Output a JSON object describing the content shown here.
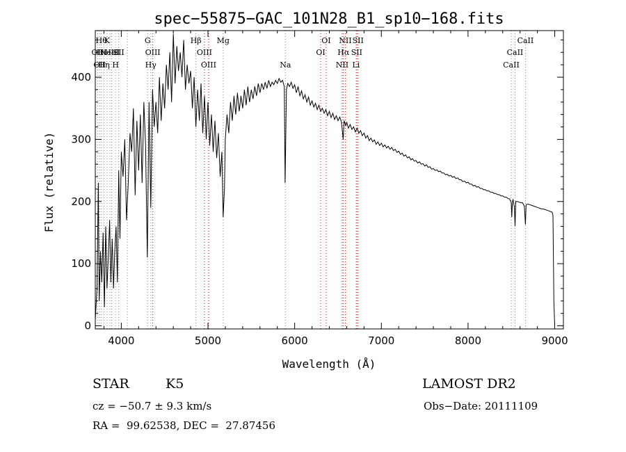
{
  "chart_data": {
    "type": "line",
    "title": "spec−55875−GAC_101N28_B1_sp10−168.fits",
    "xlabel": "Wavelength (Å)",
    "ylabel": "Flux (relative)",
    "xlim": [
      3700,
      9100
    ],
    "ylim": [
      -5,
      475
    ],
    "x_ticks": [
      4000,
      5000,
      6000,
      7000,
      8000,
      9000
    ],
    "y_ticks": [
      0,
      100,
      200,
      300,
      400
    ],
    "line_color": "#000000",
    "marker_color": "#cc0000",
    "spectrum": [
      [
        3700,
        10
      ],
      [
        3720,
        60
      ],
      [
        3735,
        230
      ],
      [
        3745,
        40
      ],
      [
        3760,
        120
      ],
      [
        3775,
        70
      ],
      [
        3790,
        150
      ],
      [
        3805,
        30
      ],
      [
        3820,
        160
      ],
      [
        3835,
        60
      ],
      [
        3850,
        110
      ],
      [
        3865,
        170
      ],
      [
        3880,
        70
      ],
      [
        3895,
        140
      ],
      [
        3910,
        60
      ],
      [
        3925,
        120
      ],
      [
        3940,
        160
      ],
      [
        3955,
        70
      ],
      [
        3970,
        250
      ],
      [
        3985,
        140
      ],
      [
        4000,
        280
      ],
      [
        4020,
        240
      ],
      [
        4040,
        300
      ],
      [
        4060,
        170
      ],
      [
        4080,
        230
      ],
      [
        4100,
        310
      ],
      [
        4120,
        280
      ],
      [
        4140,
        350
      ],
      [
        4160,
        210
      ],
      [
        4180,
        330
      ],
      [
        4200,
        250
      ],
      [
        4220,
        340
      ],
      [
        4240,
        230
      ],
      [
        4260,
        360
      ],
      [
        4280,
        290
      ],
      [
        4300,
        110
      ],
      [
        4320,
        360
      ],
      [
        4340,
        190
      ],
      [
        4360,
        380
      ],
      [
        4380,
        320
      ],
      [
        4400,
        360
      ],
      [
        4420,
        310
      ],
      [
        4440,
        400
      ],
      [
        4460,
        330
      ],
      [
        4480,
        390
      ],
      [
        4500,
        350
      ],
      [
        4520,
        420
      ],
      [
        4540,
        380
      ],
      [
        4560,
        440
      ],
      [
        4580,
        360
      ],
      [
        4600,
        470
      ],
      [
        4620,
        390
      ],
      [
        4640,
        450
      ],
      [
        4660,
        410
      ],
      [
        4680,
        440
      ],
      [
        4700,
        400
      ],
      [
        4720,
        460
      ],
      [
        4740,
        380
      ],
      [
        4760,
        420
      ],
      [
        4780,
        390
      ],
      [
        4800,
        410
      ],
      [
        4820,
        350
      ],
      [
        4840,
        400
      ],
      [
        4860,
        320
      ],
      [
        4880,
        380
      ],
      [
        4900,
        330
      ],
      [
        4920,
        390
      ],
      [
        4940,
        310
      ],
      [
        4960,
        370
      ],
      [
        4980,
        300
      ],
      [
        5000,
        360
      ],
      [
        5020,
        290
      ],
      [
        5040,
        340
      ],
      [
        5060,
        280
      ],
      [
        5080,
        330
      ],
      [
        5100,
        270
      ],
      [
        5120,
        310
      ],
      [
        5140,
        240
      ],
      [
        5160,
        280
      ],
      [
        5175,
        175
      ],
      [
        5190,
        220
      ],
      [
        5200,
        300
      ],
      [
        5220,
        340
      ],
      [
        5240,
        310
      ],
      [
        5260,
        360
      ],
      [
        5280,
        330
      ],
      [
        5300,
        370
      ],
      [
        5320,
        340
      ],
      [
        5340,
        375
      ],
      [
        5360,
        345
      ],
      [
        5380,
        370
      ],
      [
        5400,
        350
      ],
      [
        5420,
        380
      ],
      [
        5440,
        355
      ],
      [
        5460,
        385
      ],
      [
        5480,
        360
      ],
      [
        5500,
        380
      ],
      [
        5520,
        365
      ],
      [
        5540,
        385
      ],
      [
        5560,
        370
      ],
      [
        5580,
        390
      ],
      [
        5600,
        375
      ],
      [
        5620,
        390
      ],
      [
        5640,
        380
      ],
      [
        5660,
        392
      ],
      [
        5680,
        382
      ],
      [
        5700,
        395
      ],
      [
        5720,
        385
      ],
      [
        5740,
        392
      ],
      [
        5760,
        388
      ],
      [
        5780,
        395
      ],
      [
        5800,
        390
      ],
      [
        5820,
        398
      ],
      [
        5840,
        392
      ],
      [
        5860,
        395
      ],
      [
        5880,
        385
      ],
      [
        5890,
        230
      ],
      [
        5897,
        300
      ],
      [
        5905,
        380
      ],
      [
        5920,
        390
      ],
      [
        5940,
        385
      ],
      [
        5960,
        392
      ],
      [
        5980,
        382
      ],
      [
        6000,
        388
      ],
      [
        6020,
        375
      ],
      [
        6040,
        385
      ],
      [
        6060,
        370
      ],
      [
        6080,
        378
      ],
      [
        6100,
        365
      ],
      [
        6120,
        372
      ],
      [
        6140,
        360
      ],
      [
        6160,
        368
      ],
      [
        6180,
        355
      ],
      [
        6200,
        362
      ],
      [
        6220,
        352
      ],
      [
        6240,
        358
      ],
      [
        6260,
        348
      ],
      [
        6280,
        355
      ],
      [
        6300,
        345
      ],
      [
        6320,
        350
      ],
      [
        6340,
        342
      ],
      [
        6360,
        348
      ],
      [
        6380,
        338
      ],
      [
        6400,
        345
      ],
      [
        6420,
        335
      ],
      [
        6440,
        342
      ],
      [
        6460,
        332
      ],
      [
        6480,
        338
      ],
      [
        6500,
        330
      ],
      [
        6520,
        336
      ],
      [
        6540,
        328
      ],
      [
        6560,
        300
      ],
      [
        6570,
        330
      ],
      [
        6590,
        322
      ],
      [
        6600,
        328
      ],
      [
        6620,
        318
      ],
      [
        6640,
        324
      ],
      [
        6660,
        316
      ],
      [
        6680,
        320
      ],
      [
        6700,
        312
      ],
      [
        6720,
        318
      ],
      [
        6740,
        310
      ],
      [
        6760,
        314
      ],
      [
        6780,
        306
      ],
      [
        6800,
        310
      ],
      [
        6820,
        302
      ],
      [
        6840,
        306
      ],
      [
        6860,
        298
      ],
      [
        6880,
        302
      ],
      [
        6900,
        296
      ],
      [
        6920,
        299
      ],
      [
        6940,
        292
      ],
      [
        6960,
        296
      ],
      [
        6980,
        290
      ],
      [
        7000,
        294
      ],
      [
        7020,
        288
      ],
      [
        7040,
        291
      ],
      [
        7060,
        286
      ],
      [
        7080,
        289
      ],
      [
        7100,
        284
      ],
      [
        7120,
        287
      ],
      [
        7140,
        282
      ],
      [
        7160,
        284
      ],
      [
        7180,
        279
      ],
      [
        7200,
        281
      ],
      [
        7220,
        276
      ],
      [
        7240,
        278
      ],
      [
        7260,
        273
      ],
      [
        7280,
        275
      ],
      [
        7300,
        270
      ],
      [
        7320,
        272
      ],
      [
        7340,
        267
      ],
      [
        7360,
        269
      ],
      [
        7380,
        265
      ],
      [
        7400,
        266
      ],
      [
        7420,
        262
      ],
      [
        7440,
        264
      ],
      [
        7460,
        260
      ],
      [
        7480,
        261
      ],
      [
        7500,
        257
      ],
      [
        7520,
        259
      ],
      [
        7540,
        255
      ],
      [
        7560,
        256
      ],
      [
        7580,
        252
      ],
      [
        7600,
        253
      ],
      [
        7620,
        250
      ],
      [
        7640,
        251
      ],
      [
        7660,
        248
      ],
      [
        7680,
        249
      ],
      [
        7700,
        246
      ],
      [
        7720,
        246
      ],
      [
        7740,
        243
      ],
      [
        7760,
        244
      ],
      [
        7780,
        241
      ],
      [
        7800,
        242
      ],
      [
        7820,
        239
      ],
      [
        7840,
        240
      ],
      [
        7860,
        237
      ],
      [
        7880,
        238
      ],
      [
        7900,
        235
      ],
      [
        7920,
        235
      ],
      [
        7940,
        232
      ],
      [
        7960,
        233
      ],
      [
        7980,
        230
      ],
      [
        8000,
        231
      ],
      [
        8020,
        228
      ],
      [
        8040,
        228
      ],
      [
        8060,
        225
      ],
      [
        8080,
        226
      ],
      [
        8100,
        223
      ],
      [
        8120,
        224
      ],
      [
        8140,
        221
      ],
      [
        8160,
        221
      ],
      [
        8180,
        219
      ],
      [
        8200,
        219
      ],
      [
        8220,
        217
      ],
      [
        8240,
        217
      ],
      [
        8260,
        215
      ],
      [
        8280,
        215
      ],
      [
        8300,
        213
      ],
      [
        8320,
        213
      ],
      [
        8340,
        211
      ],
      [
        8360,
        211
      ],
      [
        8380,
        209
      ],
      [
        8400,
        209
      ],
      [
        8420,
        207
      ],
      [
        8440,
        207
      ],
      [
        8460,
        205
      ],
      [
        8480,
        204
      ],
      [
        8498,
        198
      ],
      [
        8505,
        175
      ],
      [
        8512,
        200
      ],
      [
        8520,
        203
      ],
      [
        8535,
        190
      ],
      [
        8542,
        160
      ],
      [
        8550,
        200
      ],
      [
        8570,
        200
      ],
      [
        8590,
        199
      ],
      [
        8610,
        198
      ],
      [
        8630,
        198
      ],
      [
        8650,
        192
      ],
      [
        8662,
        163
      ],
      [
        8670,
        195
      ],
      [
        8690,
        196
      ],
      [
        8710,
        195
      ],
      [
        8730,
        194
      ],
      [
        8750,
        193
      ],
      [
        8770,
        192
      ],
      [
        8790,
        191
      ],
      [
        8810,
        190
      ],
      [
        8830,
        189
      ],
      [
        8850,
        188
      ],
      [
        8870,
        188
      ],
      [
        8890,
        187
      ],
      [
        8910,
        186
      ],
      [
        8930,
        185
      ],
      [
        8950,
        184
      ],
      [
        8970,
        183
      ],
      [
        8980,
        178
      ],
      [
        8990,
        40
      ],
      [
        9000,
        0
      ]
    ],
    "line_markers": [
      {
        "wavelength": 3727,
        "color": "gray",
        "labels": [
          {
            "text": "OII",
            "row": 1
          }
        ]
      },
      {
        "wavelength": 3750,
        "color": "gray",
        "labels": [
          {
            "text": "OII",
            "row": 2
          }
        ]
      },
      {
        "wavelength": 3770,
        "color": "gray",
        "labels": [
          {
            "text": "Hθ",
            "row": 0
          },
          {
            "text": "Hι",
            "row": 1
          }
        ]
      },
      {
        "wavelength": 3800,
        "color": "gray",
        "labels": [
          {
            "text": "Hη",
            "row": 2
          }
        ]
      },
      {
        "wavelength": 3835,
        "color": "gray",
        "labels": [
          {
            "text": "K",
            "row": 0
          }
        ]
      },
      {
        "wavelength": 3869,
        "color": "gray",
        "labels": [
          {
            "text": "NeIII",
            "row": 1
          }
        ]
      },
      {
        "wavelength": 3889,
        "color": "gray",
        "labels": [
          {
            "text": "HeI",
            "row": 1
          }
        ]
      },
      {
        "wavelength": 3934,
        "color": "gray",
        "labels": [
          {
            "text": "H",
            "row": 2
          }
        ]
      },
      {
        "wavelength": 3970,
        "color": "gray",
        "labels": [
          {
            "text": "SII",
            "row": 1
          }
        ]
      },
      {
        "wavelength": 4070,
        "color": "gray",
        "labels": []
      },
      {
        "wavelength": 4304,
        "color": "gray",
        "labels": [
          {
            "text": "G",
            "row": 0
          }
        ]
      },
      {
        "wavelength": 4340,
        "color": "gray",
        "labels": [
          {
            "text": "Hγ",
            "row": 2
          }
        ]
      },
      {
        "wavelength": 4363,
        "color": "red",
        "labels": [
          {
            "text": "OIII",
            "row": 1
          }
        ]
      },
      {
        "wavelength": 4861,
        "color": "gray",
        "labels": [
          {
            "text": "Hβ",
            "row": 0
          }
        ]
      },
      {
        "wavelength": 4959,
        "color": "red",
        "labels": [
          {
            "text": "OIII",
            "row": 1
          }
        ]
      },
      {
        "wavelength": 5007,
        "color": "red",
        "labels": [
          {
            "text": "OIII",
            "row": 2
          }
        ]
      },
      {
        "wavelength": 5175,
        "color": "gray",
        "labels": [
          {
            "text": "Mg",
            "row": 0
          }
        ]
      },
      {
        "wavelength": 5893,
        "color": "gray",
        "labels": [
          {
            "text": "Na",
            "row": 2
          }
        ]
      },
      {
        "wavelength": 6300,
        "color": "red",
        "labels": [
          {
            "text": "OI",
            "row": 1
          }
        ]
      },
      {
        "wavelength": 6363,
        "color": "red",
        "labels": [
          {
            "text": "OI",
            "row": 0
          }
        ]
      },
      {
        "wavelength": 6548,
        "color": "red",
        "labels": [
          {
            "text": "NII",
            "row": 2
          }
        ]
      },
      {
        "wavelength": 6563,
        "color": "red",
        "labels": [
          {
            "text": "Hα",
            "row": 1
          }
        ]
      },
      {
        "wavelength": 6584,
        "color": "red",
        "labels": [
          {
            "text": "NII",
            "row": 0
          }
        ]
      },
      {
        "wavelength": 6708,
        "color": "gray",
        "labels": [
          {
            "text": "Li",
            "row": 2
          }
        ]
      },
      {
        "wavelength": 6716,
        "color": "red",
        "labels": [
          {
            "text": "SII",
            "row": 1
          }
        ]
      },
      {
        "wavelength": 6731,
        "color": "red",
        "labels": [
          {
            "text": "SII",
            "row": 0
          }
        ]
      },
      {
        "wavelength": 8498,
        "color": "gray",
        "labels": [
          {
            "text": "CaII",
            "row": 2
          }
        ]
      },
      {
        "wavelength": 8542,
        "color": "gray",
        "labels": [
          {
            "text": "CaII",
            "row": 1
          }
        ]
      },
      {
        "wavelength": 8662,
        "color": "gray",
        "labels": [
          {
            "text": "CaII",
            "row": 0
          }
        ]
      }
    ]
  },
  "info": {
    "object_class": "STAR",
    "subclass": "K5",
    "survey": "LAMOST DR2",
    "redshift": "cz = −50.7 ± 9.3 km/s",
    "obs_date": "Obs−Date: 20111109",
    "coords": "RA =  99.62538, DEC =  27.87456"
  }
}
